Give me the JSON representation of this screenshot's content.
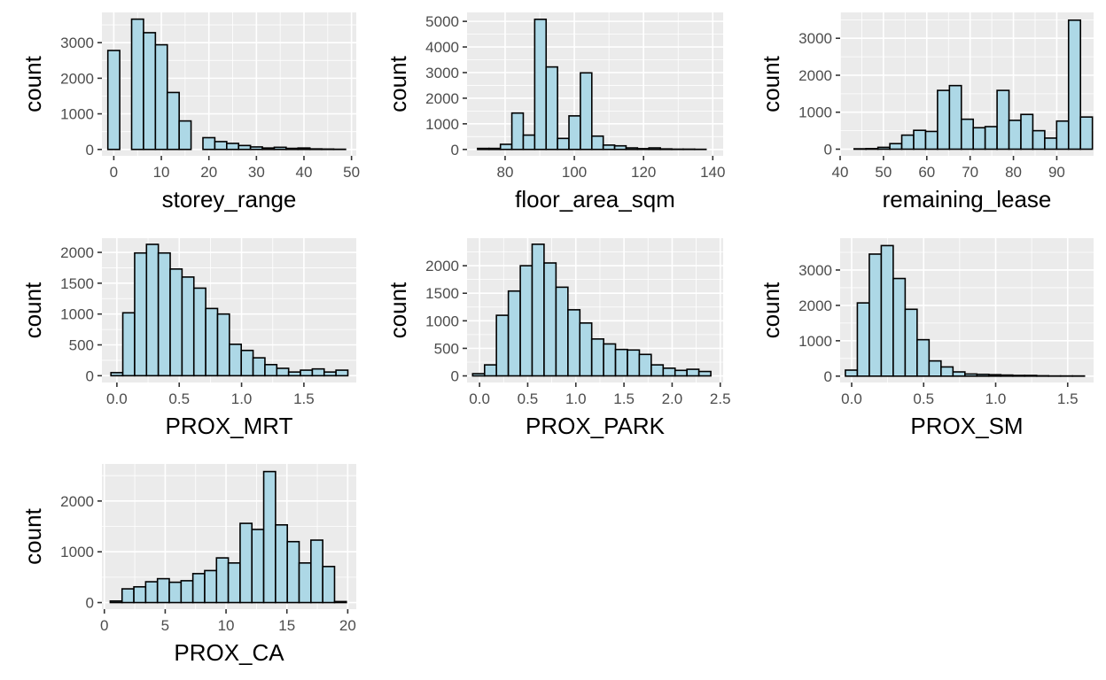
{
  "bar_fill": "#add8e6",
  "bar_outline": "#000000",
  "panel_background": "#ebebeb",
  "grid_color": "#ffffff",
  "chart_data": [
    {
      "type": "bar",
      "xlabel": "storey_range",
      "ylabel": "count",
      "xlim": [
        -2.5,
        51
      ],
      "ylim": [
        -180,
        3850
      ],
      "x_ticks": [
        0,
        10,
        20,
        30,
        40,
        50
      ],
      "x_tick_labels": [
        "0",
        "10",
        "20",
        "30",
        "40",
        "50"
      ],
      "y_ticks": [
        0,
        1000,
        2000,
        3000
      ],
      "y_tick_labels": [
        "0",
        "1000",
        "2000",
        "3000"
      ],
      "bin_width": 2.5,
      "bins": [
        {
          "center": 0,
          "count": 2780
        },
        {
          "center": 2.5,
          "count": 0
        },
        {
          "center": 5,
          "count": 3660
        },
        {
          "center": 7.5,
          "count": 3280
        },
        {
          "center": 10,
          "count": 2940
        },
        {
          "center": 12.5,
          "count": 1600
        },
        {
          "center": 15,
          "count": 800
        },
        {
          "center": 17.5,
          "count": 0
        },
        {
          "center": 20,
          "count": 330
        },
        {
          "center": 22.5,
          "count": 220
        },
        {
          "center": 25,
          "count": 170
        },
        {
          "center": 27.5,
          "count": 110
        },
        {
          "center": 30,
          "count": 70
        },
        {
          "center": 32.5,
          "count": 40
        },
        {
          "center": 35,
          "count": 60
        },
        {
          "center": 37.5,
          "count": 30
        },
        {
          "center": 40,
          "count": 40
        },
        {
          "center": 42.5,
          "count": 15
        },
        {
          "center": 45,
          "count": 10
        },
        {
          "center": 47.5,
          "count": 5
        }
      ]
    },
    {
      "type": "bar",
      "xlabel": "floor_area_sqm",
      "ylabel": "count",
      "xlim": [
        69,
        143
      ],
      "ylim": [
        -250,
        5350
      ],
      "x_ticks": [
        80,
        100,
        120,
        140
      ],
      "x_tick_labels": [
        "80",
        "100",
        "120",
        "140"
      ],
      "y_ticks": [
        0,
        1000,
        2000,
        3000,
        4000,
        5000
      ],
      "y_tick_labels": [
        "0",
        "1000",
        "2000",
        "3000",
        "4000",
        "5000"
      ],
      "bin_width": 3.3,
      "bins": [
        {
          "center": 73.7,
          "count": 40
        },
        {
          "center": 77.0,
          "count": 40
        },
        {
          "center": 80.3,
          "count": 200
        },
        {
          "center": 83.6,
          "count": 1420
        },
        {
          "center": 86.9,
          "count": 560
        },
        {
          "center": 90.2,
          "count": 5080
        },
        {
          "center": 93.5,
          "count": 3220
        },
        {
          "center": 96.8,
          "count": 430
        },
        {
          "center": 100.1,
          "count": 1310
        },
        {
          "center": 103.4,
          "count": 2990
        },
        {
          "center": 106.7,
          "count": 520
        },
        {
          "center": 110.0,
          "count": 170
        },
        {
          "center": 113.3,
          "count": 140
        },
        {
          "center": 116.6,
          "count": 60
        },
        {
          "center": 119.9,
          "count": 30
        },
        {
          "center": 123.2,
          "count": 60
        },
        {
          "center": 126.5,
          "count": 20
        },
        {
          "center": 129.8,
          "count": 10
        },
        {
          "center": 133.1,
          "count": 10
        },
        {
          "center": 136.4,
          "count": 5
        }
      ]
    },
    {
      "type": "bar",
      "xlabel": "remaining_lease",
      "ylabel": "count",
      "xlim": [
        40,
        98.5
      ],
      "ylim": [
        -180,
        3700
      ],
      "x_ticks": [
        40,
        50,
        60,
        70,
        80,
        90
      ],
      "x_tick_labels": [
        "40",
        "50",
        "60",
        "70",
        "80",
        "90"
      ],
      "y_ticks": [
        0,
        1000,
        2000,
        3000
      ],
      "y_tick_labels": [
        "0",
        "1000",
        "2000",
        "3000"
      ],
      "bin_width": 2.75,
      "bins": [
        {
          "center": 44.6,
          "count": 10
        },
        {
          "center": 47.35,
          "count": 15
        },
        {
          "center": 50.1,
          "count": 50
        },
        {
          "center": 52.85,
          "count": 150
        },
        {
          "center": 55.6,
          "count": 380
        },
        {
          "center": 58.35,
          "count": 510
        },
        {
          "center": 61.1,
          "count": 480
        },
        {
          "center": 63.85,
          "count": 1590
        },
        {
          "center": 66.6,
          "count": 1720
        },
        {
          "center": 69.35,
          "count": 810
        },
        {
          "center": 72.1,
          "count": 580
        },
        {
          "center": 74.85,
          "count": 610
        },
        {
          "center": 77.6,
          "count": 1590
        },
        {
          "center": 80.35,
          "count": 780
        },
        {
          "center": 83.1,
          "count": 940
        },
        {
          "center": 85.85,
          "count": 500
        },
        {
          "center": 88.6,
          "count": 300
        },
        {
          "center": 91.35,
          "count": 760
        },
        {
          "center": 94.1,
          "count": 3490
        },
        {
          "center": 96.85,
          "count": 870
        }
      ]
    },
    {
      "type": "bar",
      "xlabel": "PROX_MRT",
      "ylabel": "count",
      "xlim": [
        -0.12,
        1.92
      ],
      "ylim": [
        -110,
        2230
      ],
      "x_ticks": [
        0.0,
        0.5,
        1.0,
        1.5
      ],
      "x_tick_labels": [
        "0.0",
        "0.5",
        "1.0",
        "1.5"
      ],
      "y_ticks": [
        0,
        500,
        1000,
        1500,
        2000
      ],
      "y_tick_labels": [
        "0",
        "500",
        "1000",
        "1500",
        "2000"
      ],
      "bin_width": 0.095,
      "bins": [
        {
          "center": 0.0,
          "count": 50
        },
        {
          "center": 0.095,
          "count": 1020
        },
        {
          "center": 0.19,
          "count": 1990
        },
        {
          "center": 0.285,
          "count": 2130
        },
        {
          "center": 0.38,
          "count": 1990
        },
        {
          "center": 0.475,
          "count": 1730
        },
        {
          "center": 0.57,
          "count": 1600
        },
        {
          "center": 0.665,
          "count": 1420
        },
        {
          "center": 0.76,
          "count": 1090
        },
        {
          "center": 0.855,
          "count": 1000
        },
        {
          "center": 0.95,
          "count": 510
        },
        {
          "center": 1.045,
          "count": 410
        },
        {
          "center": 1.14,
          "count": 290
        },
        {
          "center": 1.235,
          "count": 180
        },
        {
          "center": 1.33,
          "count": 120
        },
        {
          "center": 1.425,
          "count": 60
        },
        {
          "center": 1.52,
          "count": 90
        },
        {
          "center": 1.615,
          "count": 110
        },
        {
          "center": 1.71,
          "count": 60
        },
        {
          "center": 1.805,
          "count": 90
        }
      ]
    },
    {
      "type": "bar",
      "xlabel": "PROX_PARK",
      "ylabel": "count",
      "xlim": [
        -0.13,
        2.53
      ],
      "ylim": [
        -120,
        2500
      ],
      "x_ticks": [
        0.0,
        0.5,
        1.0,
        1.5,
        2.0,
        2.5
      ],
      "x_tick_labels": [
        "0.0",
        "0.5",
        "1.0",
        "1.5",
        "2.0",
        "2.5"
      ],
      "y_ticks": [
        0,
        500,
        1000,
        1500,
        2000
      ],
      "y_tick_labels": [
        "0",
        "500",
        "1000",
        "1500",
        "2000"
      ],
      "bin_width": 0.1237,
      "bins": [
        {
          "center": -0.01,
          "count": 40
        },
        {
          "center": 0.114,
          "count": 200
        },
        {
          "center": 0.237,
          "count": 1100
        },
        {
          "center": 0.361,
          "count": 1540
        },
        {
          "center": 0.485,
          "count": 2000
        },
        {
          "center": 0.608,
          "count": 2390
        },
        {
          "center": 0.732,
          "count": 2050
        },
        {
          "center": 0.856,
          "count": 1610
        },
        {
          "center": 0.98,
          "count": 1200
        },
        {
          "center": 1.103,
          "count": 960
        },
        {
          "center": 1.227,
          "count": 670
        },
        {
          "center": 1.35,
          "count": 580
        },
        {
          "center": 1.474,
          "count": 480
        },
        {
          "center": 1.598,
          "count": 470
        },
        {
          "center": 1.721,
          "count": 390
        },
        {
          "center": 1.845,
          "count": 200
        },
        {
          "center": 1.969,
          "count": 140
        },
        {
          "center": 2.092,
          "count": 100
        },
        {
          "center": 2.216,
          "count": 120
        },
        {
          "center": 2.34,
          "count": 80
        }
      ]
    },
    {
      "type": "bar",
      "xlabel": "PROX_SM",
      "ylabel": "count",
      "xlim": [
        -0.08,
        1.68
      ],
      "ylim": [
        -180,
        3900
      ],
      "x_ticks": [
        0.0,
        0.5,
        1.0,
        1.5
      ],
      "x_tick_labels": [
        "0.0",
        "0.5",
        "1.0",
        "1.5"
      ],
      "y_ticks": [
        0,
        1000,
        2000,
        3000
      ],
      "y_tick_labels": [
        "0",
        "1000",
        "2000",
        "3000"
      ],
      "bin_width": 0.083,
      "bins": [
        {
          "center": -0.002,
          "count": 170
        },
        {
          "center": 0.081,
          "count": 2070
        },
        {
          "center": 0.164,
          "count": 3450
        },
        {
          "center": 0.247,
          "count": 3690
        },
        {
          "center": 0.33,
          "count": 2760
        },
        {
          "center": 0.413,
          "count": 1890
        },
        {
          "center": 0.496,
          "count": 1030
        },
        {
          "center": 0.579,
          "count": 430
        },
        {
          "center": 0.662,
          "count": 260
        },
        {
          "center": 0.745,
          "count": 120
        },
        {
          "center": 0.828,
          "count": 60
        },
        {
          "center": 0.911,
          "count": 50
        },
        {
          "center": 0.994,
          "count": 40
        },
        {
          "center": 1.077,
          "count": 30
        },
        {
          "center": 1.16,
          "count": 20
        },
        {
          "center": 1.243,
          "count": 20
        },
        {
          "center": 1.326,
          "count": 10
        },
        {
          "center": 1.409,
          "count": 5
        },
        {
          "center": 1.492,
          "count": 5
        },
        {
          "center": 1.575,
          "count": 5
        }
      ]
    },
    {
      "type": "bar",
      "xlabel": "PROX_CA",
      "ylabel": "count",
      "xlim": [
        -0.2,
        20.7
      ],
      "ylim": [
        -130,
        2730
      ],
      "x_ticks": [
        0,
        5,
        10,
        15,
        20
      ],
      "x_tick_labels": [
        "0",
        "5",
        "10",
        "15",
        "20"
      ],
      "y_ticks": [
        0,
        1000,
        2000
      ],
      "y_tick_labels": [
        "0",
        "1000",
        "2000"
      ],
      "bin_width": 0.97,
      "bins": [
        {
          "center": 0.97,
          "count": 30
        },
        {
          "center": 1.94,
          "count": 270
        },
        {
          "center": 2.91,
          "count": 310
        },
        {
          "center": 3.88,
          "count": 410
        },
        {
          "center": 4.85,
          "count": 470
        },
        {
          "center": 5.82,
          "count": 400
        },
        {
          "center": 6.79,
          "count": 430
        },
        {
          "center": 7.76,
          "count": 570
        },
        {
          "center": 8.73,
          "count": 630
        },
        {
          "center": 9.7,
          "count": 880
        },
        {
          "center": 10.67,
          "count": 780
        },
        {
          "center": 11.64,
          "count": 1560
        },
        {
          "center": 12.61,
          "count": 1440
        },
        {
          "center": 13.58,
          "count": 2580
        },
        {
          "center": 14.55,
          "count": 1530
        },
        {
          "center": 15.52,
          "count": 1200
        },
        {
          "center": 16.49,
          "count": 780
        },
        {
          "center": 17.46,
          "count": 1230
        },
        {
          "center": 18.43,
          "count": 710
        },
        {
          "center": 19.4,
          "count": 20
        }
      ]
    }
  ]
}
